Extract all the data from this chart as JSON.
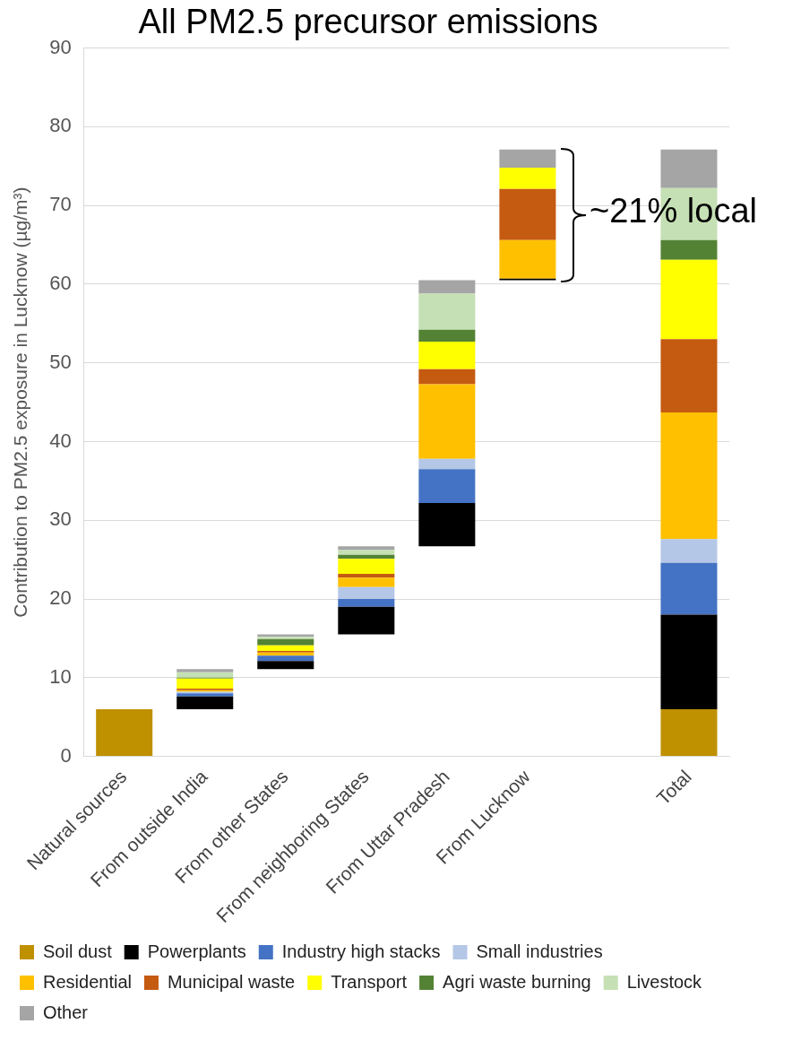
{
  "chart_data": {
    "type": "bar",
    "title": "All PM2.5 precursor emissions",
    "ylabel": "Contribution to PM2.5 exposure in Lucknow (µg/m³)",
    "categories": [
      "Natural sources",
      "From outside India",
      "From other States",
      "From neighboring States",
      "From Uttar Pradesh",
      "From Lucknow",
      null,
      "Total"
    ],
    "series": [
      {
        "name": "Soil dust",
        "color": "#bf9000",
        "values": [
          6.0,
          null,
          null,
          null,
          null,
          null,
          null,
          6.0
        ],
        "base": [
          0,
          null,
          null,
          null,
          null,
          null,
          null,
          0
        ]
      },
      {
        "name": "Powerplants",
        "color": "#000000",
        "values": [
          null,
          1.6,
          1.0,
          3.5,
          5.5,
          0.2,
          null,
          12.0
        ],
        "base": [
          null,
          6.0,
          11.1,
          15.5,
          26.7,
          60.5,
          null,
          6.0
        ]
      },
      {
        "name": "Industry high stacks",
        "color": "#4472c4",
        "values": [
          null,
          0.4,
          0.7,
          1.0,
          4.3,
          null,
          null,
          6.6
        ],
        "base": [
          null,
          7.6,
          12.1,
          19.0,
          32.2,
          null,
          null,
          18.0
        ]
      },
      {
        "name": "Small industries",
        "color": "#b4c7e7",
        "values": [
          null,
          0.2,
          null,
          1.5,
          1.3,
          null,
          null,
          3.0
        ],
        "base": [
          null,
          8.0,
          null,
          20.0,
          36.5,
          null,
          null,
          24.6
        ]
      },
      {
        "name": "Residential",
        "color": "#ffc000",
        "values": [
          null,
          0.2,
          0.4,
          1.2,
          9.5,
          4.9,
          null,
          16.1
        ],
        "base": [
          null,
          8.2,
          12.8,
          21.5,
          37.8,
          60.7,
          null,
          27.6
        ]
      },
      {
        "name": "Municipal waste",
        "color": "#c55a11",
        "values": [
          null,
          0.2,
          0.2,
          0.5,
          1.9,
          6.5,
          null,
          9.3
        ],
        "base": [
          null,
          8.4,
          13.2,
          22.7,
          47.3,
          65.6,
          null,
          43.7
        ]
      },
      {
        "name": "Transport",
        "color": "#ffff00",
        "values": [
          null,
          1.3,
          0.7,
          1.9,
          3.5,
          2.7,
          null,
          10.1
        ],
        "base": [
          null,
          8.6,
          13.4,
          23.2,
          49.2,
          72.1,
          null,
          53.0
        ]
      },
      {
        "name": "Agri waste burning",
        "color": "#548235",
        "values": [
          null,
          0.1,
          0.8,
          0.5,
          1.5,
          null,
          null,
          2.5
        ],
        "base": [
          null,
          9.9,
          14.1,
          25.1,
          52.7,
          null,
          null,
          63.1
        ]
      },
      {
        "name": "Livestock",
        "color": "#c5e0b4",
        "values": [
          null,
          0.7,
          0.3,
          0.6,
          4.6,
          null,
          null,
          6.6
        ],
        "base": [
          null,
          10.0,
          14.9,
          25.6,
          54.2,
          null,
          null,
          65.6
        ]
      },
      {
        "name": "Other",
        "color": "#a5a5a5",
        "values": [
          null,
          0.4,
          0.3,
          0.5,
          1.7,
          2.3,
          null,
          4.9
        ],
        "base": [
          null,
          10.7,
          15.2,
          26.2,
          58.8,
          74.8,
          null,
          72.2
        ]
      }
    ],
    "ylim": [
      0,
      90
    ],
    "yticks": [
      0,
      10,
      20,
      30,
      40,
      50,
      60,
      70,
      80,
      90
    ],
    "grid": "y",
    "legend": "bottom",
    "annotations": [
      "~21% local"
    ]
  }
}
